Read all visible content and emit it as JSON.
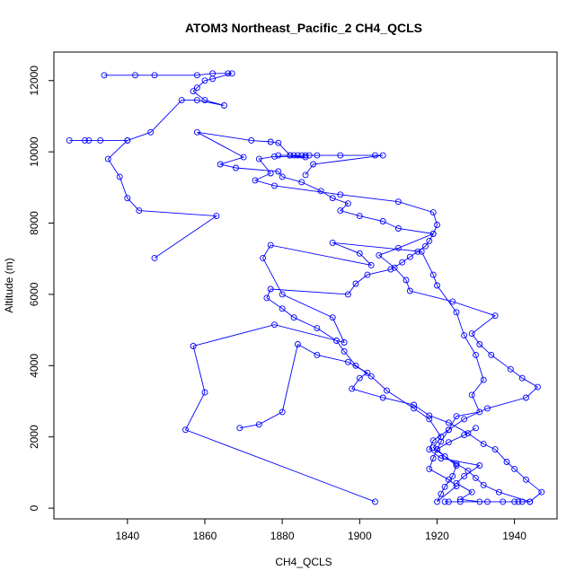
{
  "chart_data": {
    "type": "line",
    "title": "ATOM3 Northeast_Pacific_2 CH4_QCLS",
    "xlabel": "CH4_QCLS",
    "ylabel": "Altitude (m)",
    "xlim": [
      1821,
      1951
    ],
    "ylim": [
      -300,
      12800
    ],
    "x_ticks": [
      1840,
      1860,
      1880,
      1900,
      1920,
      1940
    ],
    "y_ticks": [
      0,
      2000,
      4000,
      6000,
      8000,
      10000,
      12000
    ],
    "x_tick_labels": [
      "1840",
      "1860",
      "1880",
      "1900",
      "1920",
      "1940"
    ],
    "y_tick_labels": [
      "0",
      "2000",
      "4000",
      "6000",
      "8000",
      "10000",
      "12000"
    ],
    "grid": false,
    "line_color": "#0000ff",
    "marker": "open-circle",
    "series": [
      {
        "x": [
          1904,
          1855,
          1860,
          1857,
          1878,
          1896,
          1893,
          1880,
          1875,
          1877,
          1903,
          1900,
          1893,
          1916,
          1919,
          1920,
          1925,
          1927,
          1930,
          1932,
          1929,
          1931,
          1925,
          1923,
          1921,
          1920,
          1919,
          1918,
          1923,
          1925,
          1920,
          1921,
          1922,
          1924,
          1925,
          1919,
          1921,
          1918,
          1914,
          1907,
          1903,
          1899,
          1896,
          1894,
          1889,
          1883,
          1880,
          1876,
          1877,
          1897,
          1899,
          1902,
          1908,
          1911,
          1913,
          1915,
          1917,
          1918,
          1919,
          1910,
          1906,
          1900,
          1895,
          1897,
          1893,
          1890,
          1885,
          1880,
          1879,
          1868,
          1864,
          1870,
          1858,
          1872,
          1877,
          1879,
          1882,
          1886,
          1878,
          1874,
          1877,
          1873,
          1878,
          1895,
          1910,
          1919,
          1920,
          1919,
          1910,
          1905,
          1909,
          1912,
          1913,
          1924,
          1935,
          1929,
          1931,
          1934,
          1939,
          1942,
          1946,
          1943,
          1933,
          1927,
          1923,
          1919,
          1918,
          1921,
          1931,
          1927,
          1925,
          1929,
          1926,
          1931,
          1923,
          1922,
          1926,
          1933,
          1937,
          1940,
          1941,
          1944,
          1936,
          1932,
          1930,
          1928,
          1925,
          1922,
          1920,
          1923,
          1927,
          1930
        ],
        "y": [
          180,
          2200,
          3250,
          4550,
          5150,
          4650,
          5350,
          6000,
          7020,
          7380,
          6820,
          7150,
          7450,
          7200,
          6550,
          6250,
          5500,
          4850,
          4300,
          3600,
          3180,
          2700,
          2580,
          2200,
          1870,
          1650,
          1400,
          1100,
          800,
          620,
          180,
          400,
          600,
          900,
          1200,
          1700,
          2000,
          2500,
          2800,
          3300,
          3700,
          4000,
          4400,
          4700,
          5050,
          5350,
          5600,
          5900,
          6150,
          6000,
          6300,
          6550,
          6700,
          6900,
          7050,
          7200,
          7350,
          7500,
          7700,
          7850,
          8050,
          8200,
          8350,
          8550,
          8700,
          8900,
          9150,
          9300,
          9450,
          9550,
          9650,
          9850,
          10550,
          10320,
          10280,
          10250,
          9900,
          9850,
          9870,
          9800,
          9400,
          9200,
          9050,
          8800,
          8600,
          8300,
          7950,
          7700,
          7300,
          7100,
          6750,
          6400,
          6100,
          5800,
          5400,
          4900,
          4600,
          4300,
          3900,
          3650,
          3400,
          3100,
          2800,
          2500,
          2200,
          1900,
          1650,
          1400,
          1200,
          900,
          700,
          450,
          250,
          180,
          180,
          180,
          180,
          180,
          180,
          180,
          180,
          180,
          450,
          650,
          850,
          1050,
          1250,
          1450,
          1650,
          1850,
          2050,
          2250
        ]
      },
      {
        "x": [
          1834,
          1842,
          1847,
          1858,
          1862,
          1866,
          1867,
          1862,
          1860,
          1858,
          1857,
          1860,
          1865,
          1858,
          1854,
          1846,
          1840,
          1830,
          1825,
          1829,
          1833,
          1840,
          1835,
          1838,
          1840,
          1843,
          1863,
          1847
        ],
        "y": [
          12150,
          12150,
          12150,
          12150,
          12200,
          12200,
          12200,
          12050,
          12000,
          11800,
          11700,
          11450,
          11300,
          11450,
          11450,
          10550,
          10320,
          10320,
          10320,
          10320,
          10320,
          10320,
          9800,
          9300,
          8700,
          8350,
          8200,
          7020
        ]
      },
      {
        "x": [
          1879,
          1882,
          1883,
          1884,
          1885,
          1886,
          1887,
          1889,
          1895,
          1904,
          1906,
          1888,
          1886
        ],
        "y": [
          9900,
          9900,
          9900,
          9900,
          9900,
          9900,
          9900,
          9900,
          9900,
          9900,
          9900,
          9650,
          9350
        ]
      },
      {
        "x": [
          1942,
          1944,
          1947,
          1943,
          1940,
          1938,
          1935,
          1932,
          1928,
          1923,
          1918,
          1914,
          1906,
          1898,
          1900,
          1902,
          1897,
          1889,
          1884,
          1880,
          1874,
          1869
        ],
        "y": [
          180,
          180,
          450,
          800,
          1100,
          1300,
          1650,
          1800,
          2100,
          2400,
          2600,
          2900,
          3100,
          3350,
          3650,
          3800,
          4100,
          4300,
          4600,
          2700,
          2350,
          2250
        ]
      }
    ]
  }
}
